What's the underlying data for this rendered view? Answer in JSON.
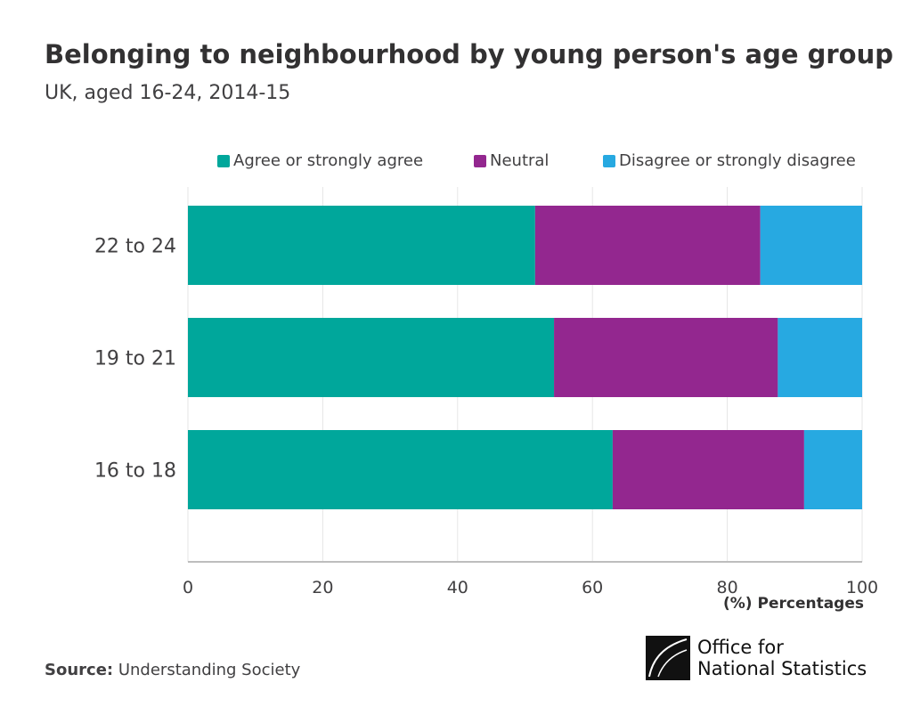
{
  "title": "Belonging to neighbourhood by young person's age group",
  "subtitle": "UK, aged 16-24, 2014-15",
  "source_label": "Source:",
  "source": "Understanding Society",
  "logo": {
    "line1": "Office for",
    "line2": "National Statistics"
  },
  "chart_data": {
    "type": "bar",
    "orientation": "horizontal",
    "stacked": true,
    "categories": [
      "22 to 24",
      "19 to 21",
      "16 to 18"
    ],
    "series": [
      {
        "name": "Agree or strongly agree",
        "color": "#00a79b",
        "values": [
          51.5,
          54.3,
          63.0
        ]
      },
      {
        "name": "Neutral",
        "color": "#93278f",
        "values": [
          33.4,
          33.2,
          28.4
        ]
      },
      {
        "name": "Disagree or strongly disagree",
        "color": "#27a9e1",
        "values": [
          15.1,
          12.5,
          8.6
        ]
      }
    ],
    "xlim": [
      0,
      100
    ],
    "xticks": [
      "0",
      "20",
      "40",
      "60",
      "80",
      "100"
    ],
    "xlabel": "(%) Percentages",
    "grid": true,
    "legend": "top"
  }
}
